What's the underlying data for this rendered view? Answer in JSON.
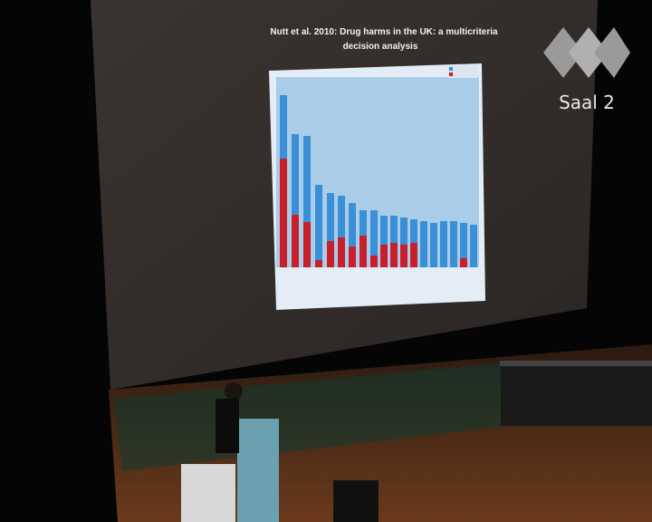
{
  "slide": {
    "title_line1": "Nutt et al. 2010: Drug harms in the UK: a multicriteria",
    "title_line2": "decision analysis"
  },
  "logo": {
    "label": "Saal 2"
  }
}
